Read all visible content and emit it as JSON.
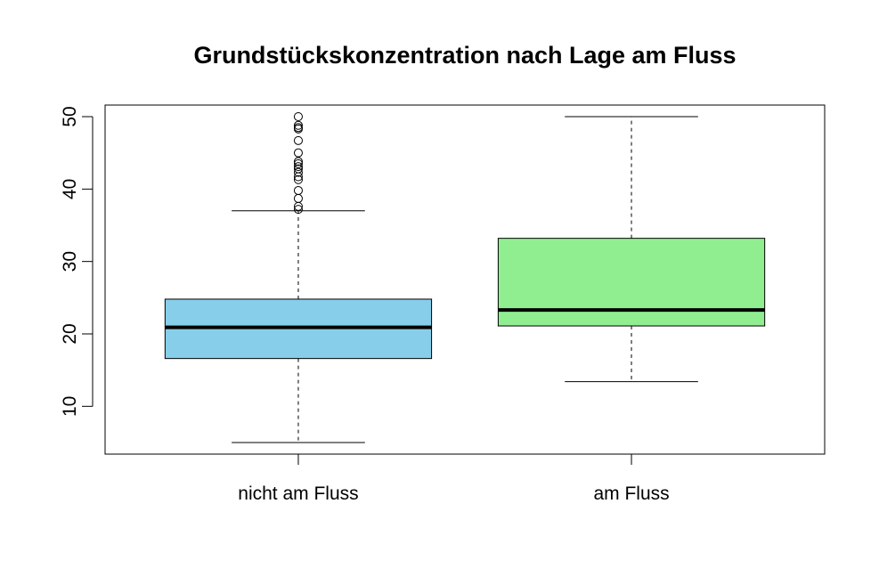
{
  "chart_data": {
    "type": "boxplot",
    "title": "Grundstückskonzentration nach Lage am Fluss",
    "xlabel": "",
    "ylabel": "",
    "ylim": [
      3.4,
      51.6
    ],
    "yticks": [
      10,
      20,
      30,
      40,
      50
    ],
    "grid": false,
    "legend": "none",
    "categories": [
      "nicht am Fluss",
      "am Fluss"
    ],
    "boxes": [
      {
        "category": "nicht am Fluss",
        "color": "#87ceeb",
        "whisker_low": 5.0,
        "q1": 16.6,
        "median": 20.9,
        "q3": 24.8,
        "whisker_high": 37.0,
        "outliers": [
          37.2,
          37.6,
          38.7,
          39.8,
          41.3,
          41.7,
          42.3,
          42.8,
          43.1,
          43.5,
          43.8,
          45.0,
          46.7,
          48.3,
          48.5,
          48.8,
          50.0
        ]
      },
      {
        "category": "am Fluss",
        "color": "#90ee90",
        "whisker_low": 13.4,
        "q1": 21.1,
        "median": 23.3,
        "q3": 33.2,
        "whisker_high": 50.0,
        "outliers": []
      }
    ]
  }
}
